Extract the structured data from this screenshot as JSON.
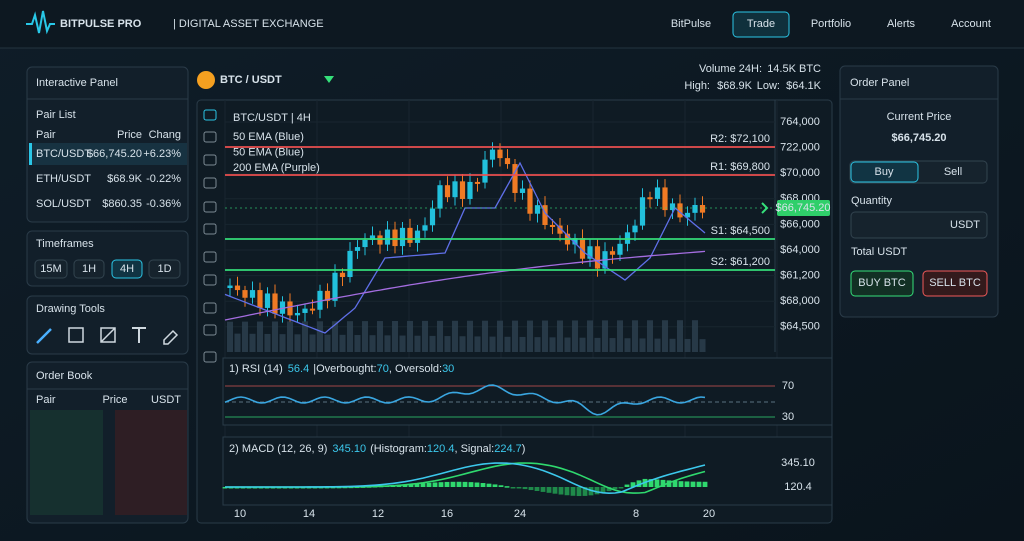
{
  "header": {
    "brand": "BITPULSE PRO",
    "subtitle": "| DIGITAL ASSET EXCHANGE",
    "nav": [
      "BitPulse",
      "Trade",
      "Portfolio",
      "Alerts",
      "Account"
    ],
    "active_nav": "Trade"
  },
  "left": {
    "interactive_title": "Interactive Panel",
    "pair_list_title": "Pair List",
    "pair_columns": [
      "Pair",
      "Price",
      "Chang"
    ],
    "pairs": [
      [
        "BTC/USDT",
        "$66,745.20",
        "+6.23%"
      ],
      [
        "ETH/USDT",
        "$68.9K",
        "-0.22%"
      ],
      [
        "SOL/USDT",
        "$860.35",
        "-0.36%"
      ]
    ],
    "timeframes_title": "Timeframes",
    "timeframes": [
      "15M",
      "1H",
      "4H",
      "1D"
    ],
    "active_timeframe": "4H",
    "drawing_tools_title": "Drawing Tools",
    "order_book_title": "Order Book",
    "order_book_columns": [
      "Pair",
      "Price",
      "USDT"
    ]
  },
  "chart": {
    "pair": "BTC / USDT",
    "volume_label": "Volume 24H:",
    "volume": "14.5K BTC",
    "high_label": "High:",
    "high": "$68.9K",
    "low_label": "Low:",
    "low": "$64.1K",
    "title": "BTC/USDT | 4H",
    "legend": [
      "50 EMA (Blue)",
      "50 EMA (Blue)",
      "200 EMA (Purple)"
    ],
    "levels": [
      "R2: $72,100",
      "R1: $69,800",
      "S1: $64,500",
      "S2: $61,200"
    ],
    "price_labels": [
      "764,000",
      "722,000",
      "$70,000",
      "$68,000",
      "$66,000",
      "$64,000",
      "$61,200",
      "$68,000",
      "$64,500"
    ],
    "current_price": "$66,745.20",
    "rsi": {
      "name": "1) RSI (14)",
      "value": "56.4",
      "overbought_label": "|Overbought:",
      "overbought": "70",
      "oversold_label": ", Oversold:",
      "oversold": "30",
      "axis": [
        "70",
        "30"
      ]
    },
    "macd": {
      "name": "2) MACD (12, 26, 9)",
      "value": "345.10",
      "histogram_label": "(Histogram:",
      "histogram": "120.4",
      "signal_label": ", Signal:",
      "signal": "224.7",
      "close": ")",
      "axis": [
        "345.10",
        "120.4"
      ]
    },
    "x_labels": [
      "10",
      "14",
      "12",
      "16",
      "24",
      "8",
      "20"
    ]
  },
  "order_panel": {
    "title": "Order Panel",
    "current_price_label": "Current Price",
    "current_price": "$66,745.20",
    "tabs": [
      "Buy",
      "Sell"
    ],
    "quantity_label": "Quantity",
    "quantity_unit": "USDT",
    "total_label": "Total USDT",
    "buy_button": "BUY BTC",
    "sell_button": "SELL BTC"
  }
}
